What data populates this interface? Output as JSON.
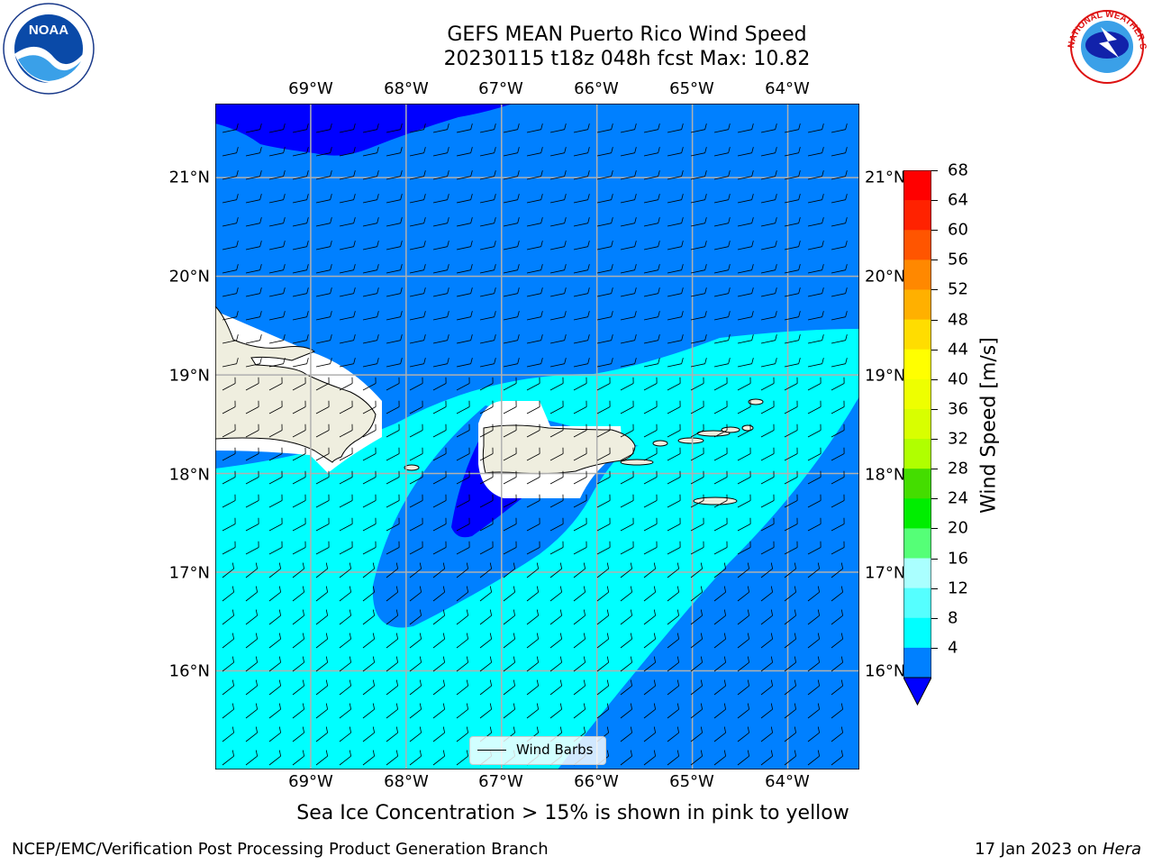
{
  "header": {
    "title_line1": "GEFS MEAN Puerto Rico Wind Speed",
    "title_line2": "20230115 t18z 048h fcst   Max: 10.82"
  },
  "map": {
    "lon_labels": [
      "69°W",
      "68°W",
      "67°W",
      "66°W",
      "65°W",
      "64°W"
    ],
    "lat_labels": [
      "21°N",
      "20°N",
      "19°N",
      "18°N",
      "17°N",
      "16°N"
    ],
    "extent": {
      "lon": [
        -70.0,
        -63.25
      ],
      "lat": [
        15.0,
        21.75
      ]
    },
    "legend_label": "Wind Barbs",
    "colors": {
      "deep_blue": "#0000ff",
      "blue": "#0080ff",
      "cyan": "#00ffff",
      "land": "#efeedf",
      "gridline": "#b0b0b0"
    }
  },
  "colorbar": {
    "label": "Wind Speed [m/s]",
    "ticks": [
      "68",
      "64",
      "60",
      "56",
      "52",
      "48",
      "44",
      "40",
      "36",
      "32",
      "28",
      "24",
      "20",
      "16",
      "12",
      "8",
      "4"
    ],
    "bands": [
      "#ff0000",
      "#ff2200",
      "#ff5500",
      "#ff8800",
      "#ffb000",
      "#ffdd00",
      "#ffff00",
      "#eeff00",
      "#d8ff00",
      "#b0ff00",
      "#44dd00",
      "#00ee00",
      "#55ff77",
      "#aaffff",
      "#55ffff",
      "#00ffff",
      "#0080ff"
    ],
    "extend_color": "#0000ff"
  },
  "note": "Sea Ice Concentration > 15% is shown in pink to yellow",
  "footer": {
    "left": "NCEP/EMC/Verification Post Processing Product Generation Branch",
    "right_prefix": "17 Jan 2023 on ",
    "right_machine": "Hera"
  },
  "logos": {
    "noaa_text": "NOAA",
    "nws_ring_text": "NATIONAL WEATHER SERVICE"
  }
}
